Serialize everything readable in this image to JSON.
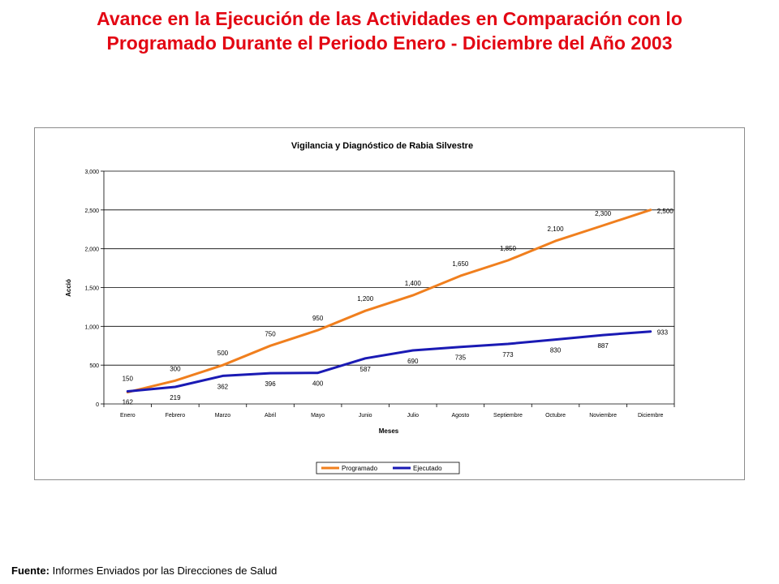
{
  "slide": {
    "title_line1": "Avance en la Ejecución de las Actividades en Comparación con lo",
    "title_line2": "Programado Durante el Periodo Enero - Diciembre del Año 2003",
    "title_color": "#e30613"
  },
  "footer": {
    "label": "Fuente:",
    "text": "Informes Enviados por las Direcciones de Salud"
  },
  "chart_data": {
    "type": "line",
    "title": "Vigilancia y Diagnóstico de Rabia Silvestre",
    "xlabel": "Meses",
    "ylabel": "Acció",
    "ylim": [
      0,
      3000
    ],
    "yticks": [
      "0",
      "500",
      "1,000",
      "1,500",
      "2,000",
      "2,500",
      "3,000"
    ],
    "ytick_values": [
      0,
      500,
      1000,
      1500,
      2000,
      2500,
      3000
    ],
    "grid": true,
    "legend_position": "bottom",
    "categories": [
      "Enero",
      "Febrero",
      "Marzo",
      "Abril",
      "Mayo",
      "Junio",
      "Julio",
      "Agosto",
      "Septiembre",
      "Octubre",
      "Noviembre",
      "Diciembre"
    ],
    "series": [
      {
        "name": "Programado",
        "color": "#f07f1e",
        "values": [
          150,
          300,
          500,
          750,
          950,
          1200,
          1400,
          1650,
          1850,
          2100,
          2300,
          2500
        ],
        "labels": [
          "150",
          "300",
          "500",
          "750",
          "950",
          "1,200",
          "1,400",
          "1,650",
          "1,850",
          "2,100",
          "2,300",
          "2,500"
        ]
      },
      {
        "name": "Ejecutado",
        "color": "#1a1ab4",
        "values": [
          162,
          219,
          362,
          396,
          400,
          587,
          690,
          735,
          773,
          830,
          887,
          933
        ],
        "labels": [
          "162",
          "219",
          "362",
          "396",
          "400",
          "587",
          "690",
          "735",
          "773",
          "830",
          "887",
          "933"
        ]
      }
    ]
  }
}
